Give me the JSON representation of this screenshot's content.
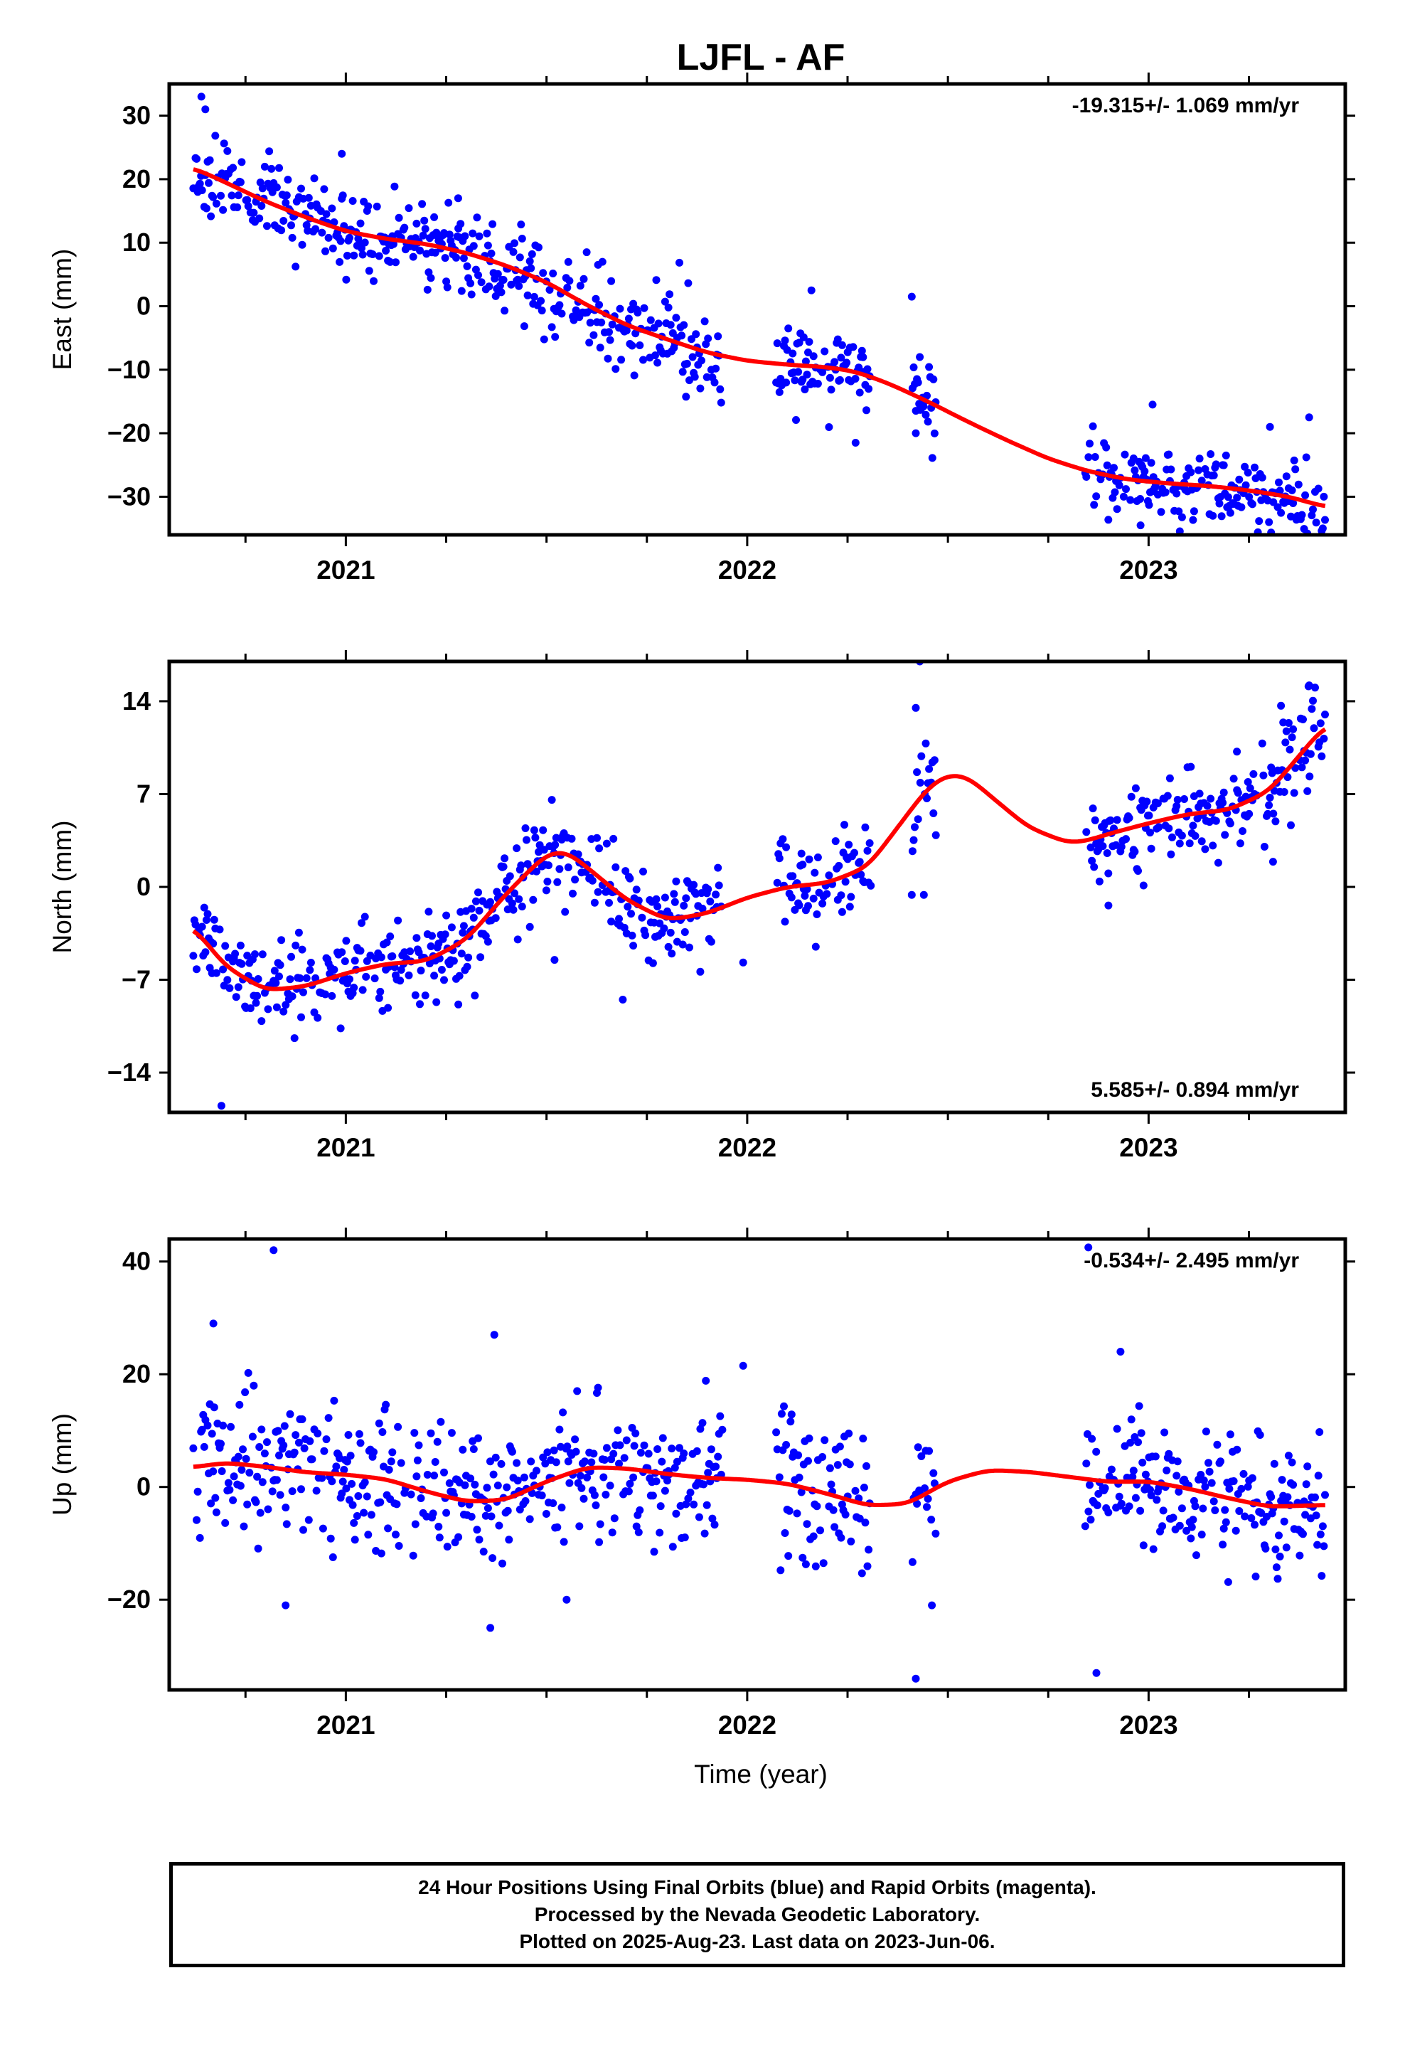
{
  "title": "LJFL - AF",
  "footer": {
    "line1": "24 Hour Positions Using Final Orbits (blue) and Rapid Orbits (magenta).",
    "line2": "Processed by the Nevada Geodetic Laboratory.",
    "line3": "Plotted on 2025-Aug-23. Last data on 2023-Jun-06."
  },
  "colors": {
    "points": "#0000ff",
    "fit": "#ff0000",
    "frame": "#000000"
  },
  "chart_data": [
    {
      "type": "scatter",
      "ylabel": "East (mm)",
      "rate_label": "-19.315+/- 1.069 mm/yr",
      "rate_position": "top-right",
      "xlim": [
        2020.56,
        2023.49
      ],
      "ylim": [
        -36,
        35
      ],
      "yticks": [
        30,
        20,
        10,
        0,
        -10,
        -20,
        -30
      ],
      "ytick_labels": [
        "30",
        "20",
        "10",
        "0",
        "−10",
        "−20",
        "−30"
      ],
      "xticks": [
        2021,
        2022,
        2023
      ],
      "xtick_labels": [
        "2021",
        "2022",
        "2023"
      ],
      "gaps": [
        [
          2021.94,
          2022.07
        ],
        [
          2022.31,
          2022.41
        ],
        [
          2022.47,
          2022.84
        ]
      ],
      "fit_x": [
        2020.62,
        2020.7,
        2020.8,
        2020.9,
        2021.0,
        2021.1,
        2021.2,
        2021.3,
        2021.4,
        2021.5,
        2021.6,
        2021.7,
        2021.8,
        2021.9,
        2022.0,
        2022.1,
        2022.2,
        2022.27,
        2022.35,
        2022.45,
        2022.55,
        2022.65,
        2022.75,
        2022.85,
        2022.95,
        2023.05,
        2023.15,
        2023.25,
        2023.35,
        2023.44
      ],
      "fit_y": [
        21.8,
        19.5,
        16.5,
        14.0,
        11.8,
        10.6,
        9.8,
        8.4,
        6.4,
        3.8,
        0.2,
        -3.0,
        -5.2,
        -7.3,
        -8.6,
        -9.2,
        -9.6,
        -10.3,
        -12.1,
        -15.0,
        -18.2,
        -21.2,
        -24.0,
        -26.0,
        -27.3,
        -27.9,
        -28.3,
        -29.0,
        -30.0,
        -31.6
      ],
      "noise_sd": 3.4,
      "outliers": [
        [
          2020.64,
          33.0
        ],
        [
          2020.65,
          31.0
        ],
        [
          2020.99,
          24.0
        ],
        [
          2021.6,
          8.5
        ],
        [
          2021.28,
          17.0
        ],
        [
          2022.16,
          2.5
        ],
        [
          2022.27,
          -21.5
        ],
        [
          2022.41,
          1.5
        ],
        [
          2022.43,
          -8.0
        ],
        [
          2022.42,
          -20.0
        ],
        [
          2023.01,
          -15.5
        ],
        [
          2022.98,
          -34.5
        ],
        [
          2023.4,
          -17.5
        ],
        [
          2023.3,
          -34.0
        ]
      ],
      "seed": 11
    },
    {
      "type": "scatter",
      "ylabel": "North (mm)",
      "rate_label": "5.585+/- 0.894 mm/yr",
      "rate_position": "bottom-right",
      "xlim": [
        2020.56,
        2023.49
      ],
      "ylim": [
        -17,
        17
      ],
      "yticks": [
        14,
        7,
        0,
        -7,
        -14
      ],
      "ytick_labels": [
        "14",
        "7",
        "0",
        "−7",
        "−14"
      ],
      "xticks": [
        2021,
        2022,
        2023
      ],
      "xtick_labels": [
        "2021",
        "2022",
        "2023"
      ],
      "gaps": [
        [
          2021.94,
          2022.07
        ],
        [
          2022.31,
          2022.41
        ],
        [
          2022.47,
          2022.84
        ]
      ],
      "fit_x": [
        2020.62,
        2020.7,
        2020.8,
        2020.9,
        2021.0,
        2021.1,
        2021.2,
        2021.3,
        2021.4,
        2021.5,
        2021.55,
        2021.6,
        2021.7,
        2021.8,
        2021.9,
        2022.0,
        2022.1,
        2022.2,
        2022.3,
        2022.4,
        2022.45,
        2022.5,
        2022.55,
        2022.6,
        2022.7,
        2022.8,
        2022.85,
        2022.9,
        2023.0,
        2023.1,
        2023.2,
        2023.3,
        2023.44
      ],
      "fit_y": [
        -3.0,
        -6.0,
        -7.8,
        -7.5,
        -6.5,
        -5.8,
        -5.6,
        -4.0,
        -0.5,
        2.5,
        2.7,
        1.5,
        -1.0,
        -2.5,
        -2.0,
        -0.8,
        0.0,
        0.3,
        1.5,
        5.5,
        7.5,
        8.5,
        8.3,
        7.0,
        4.5,
        3.3,
        3.5,
        4.0,
        4.8,
        5.5,
        5.8,
        7.2,
        12.2
      ],
      "noise_sd": 1.7,
      "outliers": [
        [
          2020.69,
          -16.5
        ],
        [
          2021.69,
          -8.5
        ],
        [
          2021.52,
          -5.5
        ],
        [
          2022.43,
          17.0
        ],
        [
          2022.42,
          13.5
        ],
        [
          2022.44,
          -0.6
        ],
        [
          2022.41,
          -0.6
        ],
        [
          2022.47,
          3.9
        ],
        [
          2021.99,
          -5.7
        ],
        [
          2022.9,
          -1.4
        ],
        [
          2023.4,
          15.2
        ],
        [
          2023.31,
          1.9
        ],
        [
          2023.22,
          10.2
        ]
      ],
      "seed": 23
    },
    {
      "type": "scatter",
      "ylabel": "Up (mm)",
      "xlabel": "Time (year)",
      "rate_label": "-0.534+/- 2.495 mm/yr",
      "rate_position": "top-right",
      "xlim": [
        2020.56,
        2023.49
      ],
      "ylim": [
        -36,
        44
      ],
      "yticks": [
        40,
        20,
        0,
        -20
      ],
      "ytick_labels": [
        "40",
        "20",
        "0",
        "−20"
      ],
      "xticks": [
        2021,
        2022,
        2023
      ],
      "xtick_labels": [
        "2021",
        "2022",
        "2023"
      ],
      "gaps": [
        [
          2021.94,
          2022.07
        ],
        [
          2022.31,
          2022.41
        ],
        [
          2022.47,
          2022.84
        ]
      ],
      "fit_x": [
        2020.62,
        2020.7,
        2020.8,
        2020.9,
        2021.0,
        2021.1,
        2021.2,
        2021.3,
        2021.4,
        2021.5,
        2021.6,
        2021.7,
        2021.8,
        2021.9,
        2022.0,
        2022.1,
        2022.2,
        2022.3,
        2022.4,
        2022.5,
        2022.6,
        2022.7,
        2022.8,
        2022.9,
        2023.0,
        2023.1,
        2023.2,
        2023.3,
        2023.44
      ],
      "fit_y": [
        3.5,
        4.3,
        3.6,
        2.6,
        2.2,
        1.4,
        -0.8,
        -2.6,
        -2.3,
        1.0,
        3.5,
        3.3,
        2.3,
        1.6,
        1.3,
        0.6,
        -1.2,
        -3.3,
        -3.0,
        1.0,
        3.0,
        2.7,
        1.8,
        0.9,
        1.0,
        -0.3,
        -2.0,
        -3.5,
        -3.2
      ],
      "noise_sd": 6.2,
      "outliers": [
        [
          2020.82,
          42.0
        ],
        [
          2020.85,
          -21.0
        ],
        [
          2021.36,
          -25.0
        ],
        [
          2021.37,
          27.0
        ],
        [
          2021.55,
          -20.0
        ],
        [
          2022.42,
          -34.0
        ],
        [
          2022.87,
          -33.0
        ],
        [
          2022.85,
          42.5
        ],
        [
          2021.99,
          21.5
        ],
        [
          2020.67,
          29.0
        ],
        [
          2022.46,
          -21.0
        ],
        [
          2022.93,
          24.0
        ]
      ],
      "seed": 37
    }
  ]
}
